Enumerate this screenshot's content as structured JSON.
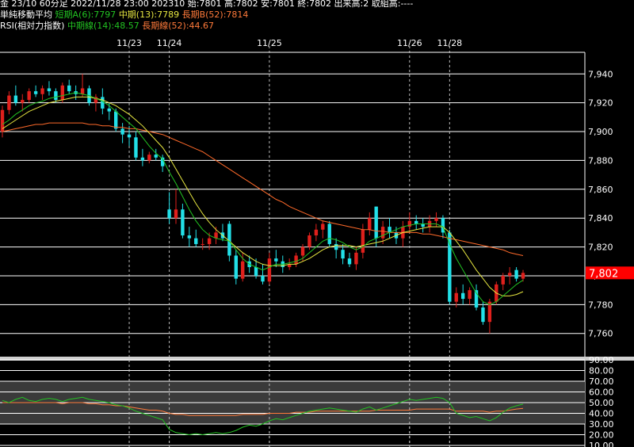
{
  "header": {
    "row1_prefix": "金 23/10 60分足 2022/11/28 23:00 202310 始:7801 高:7802 安:7801 終:7802 出来高:2 取組高:----",
    "row2_label": "単純移動平均",
    "row2_short": "短期A(6):7797",
    "row2_mid": "中期(13):7789",
    "row2_long": "長期B(52):7814",
    "row3_label": "RSI(相対力指数)",
    "row3_mid": "中期線(14):48.57",
    "row3_long": "長期線(52):44.67"
  },
  "colors": {
    "up": "#e0201c",
    "down": "#22e0e8",
    "ma_short": "#22c322",
    "ma_mid": "#e6e640",
    "ma_long": "#ff6a2a",
    "rsi_mid": "#22c322",
    "rsi_long": "#ff7a3a",
    "last_price_bg": "#ff0000"
  },
  "chart_data": [
    {
      "type": "candlestick",
      "title": "金 23/10 60分足",
      "date_labels": [
        {
          "label": "11/23",
          "index": 19
        },
        {
          "label": "11/24",
          "index": 25
        },
        {
          "label": "11/25",
          "index": 40
        },
        {
          "label": "11/26",
          "index": 61
        },
        {
          "label": "11/28",
          "index": 67
        }
      ],
      "ylim": [
        7745,
        7955
      ],
      "yticks": [
        7760,
        7780,
        7800,
        7820,
        7840,
        7860,
        7880,
        7900,
        7920,
        7940
      ],
      "ytick_labels": [
        "7,760",
        "7,780",
        "7,800",
        "7,820",
        "7,840",
        "7,860",
        "7,880",
        "7,900",
        "7,920",
        "7,940"
      ],
      "last_price": 7802,
      "last_price_label": "7,802",
      "candles": [
        [
          7900,
          7918,
          7896,
          7915
        ],
        [
          7915,
          7928,
          7912,
          7925
        ],
        [
          7925,
          7932,
          7918,
          7920
        ],
        [
          7920,
          7926,
          7914,
          7922
        ],
        [
          7922,
          7930,
          7920,
          7928
        ],
        [
          7928,
          7932,
          7924,
          7926
        ],
        [
          7926,
          7932,
          7922,
          7930
        ],
        [
          7930,
          7935,
          7925,
          7928
        ],
        [
          7928,
          7930,
          7920,
          7922
        ],
        [
          7922,
          7934,
          7920,
          7932
        ],
        [
          7932,
          7936,
          7926,
          7928
        ],
        [
          7928,
          7932,
          7922,
          7926
        ],
        [
          7926,
          7940,
          7924,
          7930
        ],
        [
          7930,
          7932,
          7918,
          7920
        ],
        [
          7920,
          7926,
          7914,
          7924
        ],
        [
          7924,
          7930,
          7912,
          7916
        ],
        [
          7916,
          7920,
          7908,
          7914
        ],
        [
          7914,
          7916,
          7900,
          7902
        ],
        [
          7902,
          7906,
          7892,
          7898
        ],
        [
          7898,
          7904,
          7890,
          7896
        ],
        [
          7896,
          7900,
          7880,
          7882
        ],
        [
          7882,
          7888,
          7876,
          7880
        ],
        [
          7880,
          7886,
          7878,
          7884
        ],
        [
          7884,
          7888,
          7880,
          7882
        ],
        [
          7882,
          7884,
          7872,
          7876
        ],
        [
          7846,
          7858,
          7836,
          7840
        ],
        [
          7840,
          7860,
          7836,
          7846
        ],
        [
          7846,
          7850,
          7826,
          7828
        ],
        [
          7828,
          7834,
          7820,
          7826
        ],
        [
          7826,
          7832,
          7820,
          7822
        ],
        [
          7822,
          7826,
          7818,
          7822
        ],
        [
          7822,
          7830,
          7818,
          7826
        ],
        [
          7826,
          7834,
          7822,
          7830
        ],
        [
          7830,
          7836,
          7824,
          7826
        ],
        [
          7836,
          7838,
          7810,
          7814
        ],
        [
          7814,
          7818,
          7794,
          7798
        ],
        [
          7798,
          7816,
          7796,
          7810
        ],
        [
          7810,
          7814,
          7802,
          7806
        ],
        [
          7806,
          7812,
          7798,
          7800
        ],
        [
          7800,
          7808,
          7794,
          7796
        ],
        [
          7796,
          7816,
          7794,
          7812
        ],
        [
          7812,
          7818,
          7806,
          7810
        ],
        [
          7810,
          7814,
          7802,
          7806
        ],
        [
          7806,
          7812,
          7804,
          7808
        ],
        [
          7808,
          7816,
          7806,
          7814
        ],
        [
          7814,
          7822,
          7810,
          7820
        ],
        [
          7820,
          7830,
          7818,
          7828
        ],
        [
          7828,
          7836,
          7824,
          7832
        ],
        [
          7832,
          7838,
          7826,
          7836
        ],
        [
          7836,
          7838,
          7820,
          7822
        ],
        [
          7822,
          7826,
          7812,
          7818
        ],
        [
          7818,
          7822,
          7808,
          7812
        ],
        [
          7812,
          7816,
          7806,
          7808
        ],
        [
          7808,
          7820,
          7804,
          7816
        ],
        [
          7816,
          7836,
          7812,
          7832
        ],
        [
          7832,
          7844,
          7828,
          7840
        ],
        [
          7848,
          7848,
          7820,
          7826
        ],
        [
          7826,
          7838,
          7822,
          7834
        ],
        [
          7834,
          7840,
          7826,
          7830
        ],
        [
          7830,
          7834,
          7822,
          7826
        ],
        [
          7826,
          7838,
          7820,
          7834
        ],
        [
          7834,
          7844,
          7830,
          7838
        ],
        [
          7838,
          7842,
          7832,
          7836
        ],
        [
          7836,
          7840,
          7830,
          7834
        ],
        [
          7834,
          7842,
          7830,
          7838
        ],
        [
          7838,
          7844,
          7834,
          7840
        ],
        [
          7840,
          7842,
          7826,
          7830
        ],
        [
          7830,
          7832,
          7780,
          7782
        ],
        [
          7782,
          7792,
          7778,
          7788
        ],
        [
          7788,
          7794,
          7780,
          7784
        ],
        [
          7784,
          7792,
          7780,
          7790
        ],
        [
          7790,
          7794,
          7776,
          7778
        ],
        [
          7778,
          7782,
          7766,
          7768
        ],
        [
          7768,
          7784,
          7760,
          7782
        ],
        [
          7782,
          7796,
          7780,
          7794
        ],
        [
          7794,
          7802,
          7790,
          7800
        ],
        [
          7800,
          7806,
          7794,
          7802
        ],
        [
          7804,
          7806,
          7796,
          7798
        ],
        [
          7798,
          7804,
          7796,
          7802
        ]
      ],
      "ma_short": [
        7905,
        7908,
        7912,
        7915,
        7918,
        7920,
        7921,
        7923,
        7924,
        7925,
        7926,
        7927,
        7926,
        7925,
        7923,
        7921,
        7918,
        7914,
        7910,
        7906,
        7902,
        7896,
        7890,
        7885,
        7881,
        7872,
        7864,
        7855,
        7846,
        7838,
        7832,
        7828,
        7826,
        7825,
        7824,
        7818,
        7812,
        7808,
        7806,
        7804,
        7806,
        7808,
        7808,
        7809,
        7810,
        7812,
        7816,
        7820,
        7824,
        7826,
        7825,
        7823,
        7820,
        7818,
        7820,
        7824,
        7826,
        7828,
        7830,
        7832,
        7834,
        7835,
        7836,
        7836,
        7836,
        7836,
        7834,
        7822,
        7812,
        7804,
        7796,
        7788,
        7782,
        7780,
        7782,
        7786,
        7790,
        7794,
        7797
      ],
      "ma_mid": [
        7902,
        7905,
        7908,
        7911,
        7914,
        7916,
        7918,
        7920,
        7921,
        7922,
        7923,
        7924,
        7924,
        7924,
        7923,
        7922,
        7920,
        7918,
        7915,
        7912,
        7908,
        7904,
        7899,
        7894,
        7889,
        7882,
        7874,
        7866,
        7858,
        7850,
        7843,
        7837,
        7832,
        7828,
        7824,
        7820,
        7816,
        7813,
        7810,
        7808,
        7807,
        7807,
        7807,
        7808,
        7808,
        7810,
        7812,
        7815,
        7818,
        7820,
        7821,
        7821,
        7821,
        7820,
        7821,
        7822,
        7823,
        7824,
        7826,
        7828,
        7830,
        7831,
        7832,
        7833,
        7834,
        7834,
        7834,
        7830,
        7824,
        7818,
        7811,
        7804,
        7798,
        7792,
        7788,
        7786,
        7786,
        7787,
        7789
      ],
      "ma_long": [
        7900,
        7901,
        7902,
        7903,
        7904,
        7905,
        7905,
        7906,
        7906,
        7906,
        7906,
        7906,
        7906,
        7905,
        7905,
        7904,
        7904,
        7903,
        7903,
        7902,
        7902,
        7901,
        7900,
        7899,
        7898,
        7896,
        7894,
        7892,
        7890,
        7888,
        7886,
        7883,
        7880,
        7877,
        7874,
        7871,
        7868,
        7865,
        7862,
        7859,
        7856,
        7853,
        7851,
        7848,
        7846,
        7844,
        7842,
        7840,
        7838,
        7837,
        7836,
        7835,
        7834,
        7833,
        7832,
        7832,
        7831,
        7831,
        7830,
        7830,
        7830,
        7830,
        7830,
        7829,
        7829,
        7828,
        7827,
        7826,
        7825,
        7824,
        7823,
        7822,
        7821,
        7820,
        7819,
        7818,
        7816,
        7815,
        7814
      ]
    },
    {
      "type": "line",
      "title": "RSI(相対力指数)",
      "ylim": [
        10,
        90
      ],
      "yticks": [
        10,
        20,
        30,
        40,
        50,
        60,
        70,
        80,
        90
      ],
      "ytick_labels": [
        "10.00",
        "20.00",
        "30.00",
        "40.00",
        "50.00",
        "60.00",
        "70.00",
        "80.00",
        "90.00"
      ],
      "series": [
        {
          "name": "中期線(14)",
          "values": [
            52,
            50,
            53,
            55,
            52,
            51,
            53,
            54,
            53,
            51,
            53,
            54,
            55,
            53,
            52,
            51,
            50,
            48,
            47,
            45,
            42,
            40,
            38,
            36,
            34,
            25,
            22,
            21,
            20,
            21,
            20,
            21,
            22,
            21,
            22,
            24,
            27,
            29,
            28,
            30,
            33,
            35,
            34,
            36,
            38,
            40,
            42,
            43,
            44,
            45,
            44,
            43,
            42,
            41,
            44,
            46,
            43,
            45,
            47,
            49,
            51,
            53,
            52,
            53,
            54,
            55,
            54,
            50,
            40,
            38,
            36,
            37,
            35,
            33,
            36,
            41,
            45,
            47,
            48.57
          ]
        },
        {
          "name": "長期線(52)",
          "values": [
            50,
            50,
            50,
            50,
            50,
            50,
            50,
            50,
            50,
            49,
            50,
            50,
            50,
            49,
            49,
            48,
            48,
            47,
            47,
            46,
            45,
            44,
            43,
            43,
            42,
            40,
            39,
            39,
            38,
            38,
            38,
            38,
            38,
            38,
            38,
            38,
            39,
            39,
            39,
            39,
            40,
            40,
            40,
            40,
            41,
            41,
            41,
            42,
            42,
            42,
            42,
            42,
            42,
            42,
            42,
            42,
            43,
            43,
            43,
            43,
            43,
            43,
            44,
            44,
            44,
            44,
            44,
            44,
            42,
            42,
            42,
            42,
            42,
            41,
            42,
            42,
            43,
            44,
            44.67
          ]
        }
      ]
    }
  ]
}
